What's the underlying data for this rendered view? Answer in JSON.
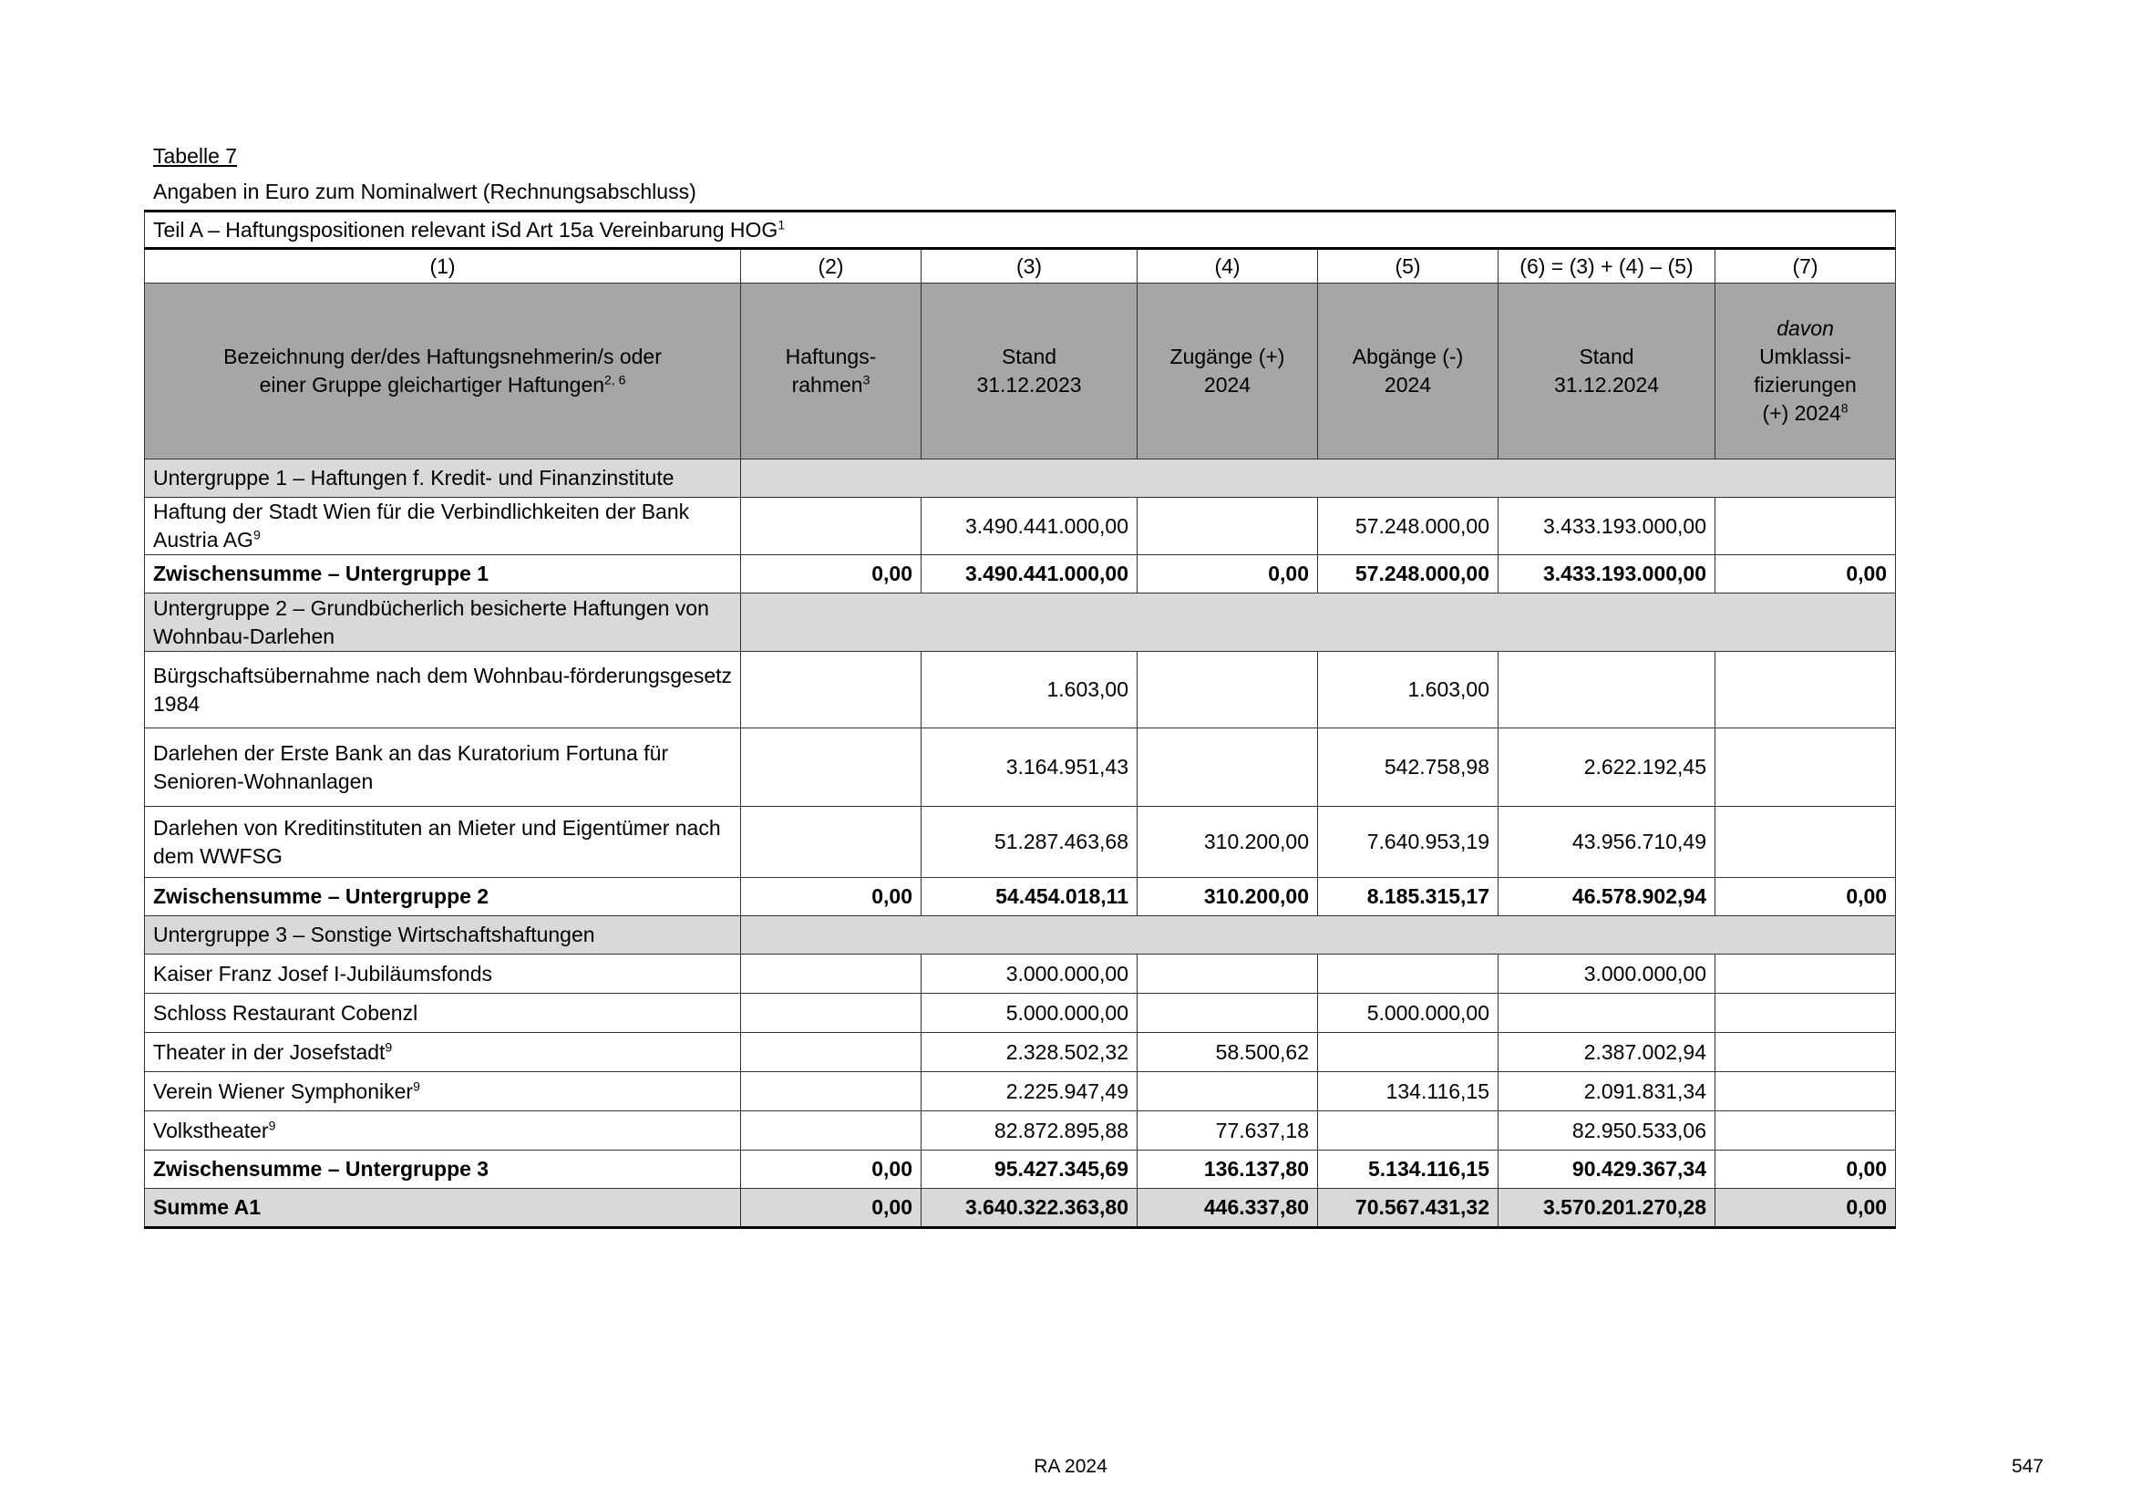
{
  "title": "Tabelle 7",
  "subtitle": "Angaben in Euro zum Nominalwert (Rechnungsabschluss)",
  "teil": {
    "text": "Teil A – Haftungspositionen relevant iSd Art 15a Vereinbarung HOG",
    "sup": "1"
  },
  "column_numbers": [
    "(1)",
    "(2)",
    "(3)",
    "(4)",
    "(5)",
    "(6) = (3) + (4) – (5)",
    "(7)"
  ],
  "headers": [
    {
      "lines": [
        "Bezeichnung der/des Haftungsnehmerin/s oder",
        "einer Gruppe gleichartiger Haftungen"
      ],
      "sup": "2, 6"
    },
    {
      "lines": [
        "Haftungs-",
        "rahmen"
      ],
      "sup": "3"
    },
    {
      "lines": [
        "Stand",
        "31.12.2023"
      ],
      "sup": ""
    },
    {
      "lines": [
        "Zugänge (+)",
        "2024"
      ],
      "sup": ""
    },
    {
      "lines": [
        "Abgänge (-)",
        "2024"
      ],
      "sup": ""
    },
    {
      "lines": [
        "Stand",
        "31.12.2024"
      ],
      "sup": ""
    },
    {
      "lines": [
        "davon",
        "Umklassi-",
        "fizierungen",
        "(+) 2024"
      ],
      "sup": "8",
      "italic_first": true
    }
  ],
  "rows": [
    {
      "type": "group",
      "label": "Untergruppe 1 – Haftungen f. Kredit- und Finanzinstitute",
      "h": 42
    },
    {
      "type": "item",
      "label": "Haftung der Stadt Wien für die Verbindlichkeiten der Bank Austria AG",
      "sup": "9",
      "values": [
        "",
        "3.490.441.000,00",
        "",
        "57.248.000,00",
        "3.433.193.000,00",
        ""
      ],
      "h": 63
    },
    {
      "type": "subtotal",
      "label": "Zwischensumme – Untergruppe 1",
      "values": [
        "0,00",
        "3.490.441.000,00",
        "0,00",
        "57.248.000,00",
        "3.433.193.000,00",
        "0,00"
      ],
      "h": 42
    },
    {
      "type": "group",
      "label": "Untergruppe 2 – Grundbücherlich besicherte Haftungen von Wohnbau-Darlehen",
      "h": 64
    },
    {
      "type": "item",
      "label": "Bürgschaftsübernahme nach dem Wohnbau-förderungsgesetz 1984",
      "values": [
        "",
        "1.603,00",
        "",
        "1.603,00",
        "",
        ""
      ],
      "h": 84
    },
    {
      "type": "item",
      "label": "Darlehen der Erste Bank an das Kuratorium Fortuna für Senioren-Wohnanlagen",
      "values": [
        "",
        "3.164.951,43",
        "",
        "542.758,98",
        "2.622.192,45",
        ""
      ],
      "h": 86
    },
    {
      "type": "item",
      "label": "Darlehen von Kreditinstituten an Mieter und Eigentümer nach dem WWFSG",
      "values": [
        "",
        "51.287.463,68",
        "310.200,00",
        "7.640.953,19",
        "43.956.710,49",
        ""
      ],
      "h": 78
    },
    {
      "type": "subtotal",
      "label": "Zwischensumme – Untergruppe 2",
      "values": [
        "0,00",
        "54.454.018,11",
        "310.200,00",
        "8.185.315,17",
        "46.578.902,94",
        "0,00"
      ],
      "h": 42
    },
    {
      "type": "group",
      "label": "Untergruppe 3 – Sonstige Wirtschaftshaftungen",
      "h": 42
    },
    {
      "type": "item",
      "label": "Kaiser Franz Josef I-Jubiläumsfonds",
      "values": [
        "",
        "3.000.000,00",
        "",
        "",
        "3.000.000,00",
        ""
      ],
      "h": 43
    },
    {
      "type": "item",
      "label": "Schloss Restaurant Cobenzl",
      "values": [
        "",
        "5.000.000,00",
        "",
        "5.000.000,00",
        "",
        ""
      ],
      "h": 43
    },
    {
      "type": "item",
      "label": "Theater in der Josefstadt",
      "sup": "9",
      "values": [
        "",
        "2.328.502,32",
        "58.500,62",
        "",
        "2.387.002,94",
        ""
      ],
      "h": 43
    },
    {
      "type": "item",
      "label": "Verein Wiener Symphoniker",
      "sup": "9",
      "values": [
        "",
        "2.225.947,49",
        "",
        "134.116,15",
        "2.091.831,34",
        ""
      ],
      "h": 43
    },
    {
      "type": "item",
      "label": "Volkstheater",
      "sup": "9",
      "values": [
        "",
        "82.872.895,88",
        "77.637,18",
        "",
        "82.950.533,06",
        ""
      ],
      "h": 43
    },
    {
      "type": "subtotal",
      "label": "Zwischensumme – Untergruppe 3",
      "values": [
        "0,00",
        "95.427.345,69",
        "136.137,80",
        "5.134.116,15",
        "90.429.367,34",
        "0,00"
      ],
      "h": 42
    },
    {
      "type": "sum",
      "label": "Summe A1",
      "values": [
        "0,00",
        "3.640.322.363,80",
        "446.337,80",
        "70.567.431,32",
        "3.570.201.270,28",
        "0,00"
      ],
      "h": 43
    }
  ],
  "footer": {
    "center": "RA 2024",
    "page": "547"
  }
}
